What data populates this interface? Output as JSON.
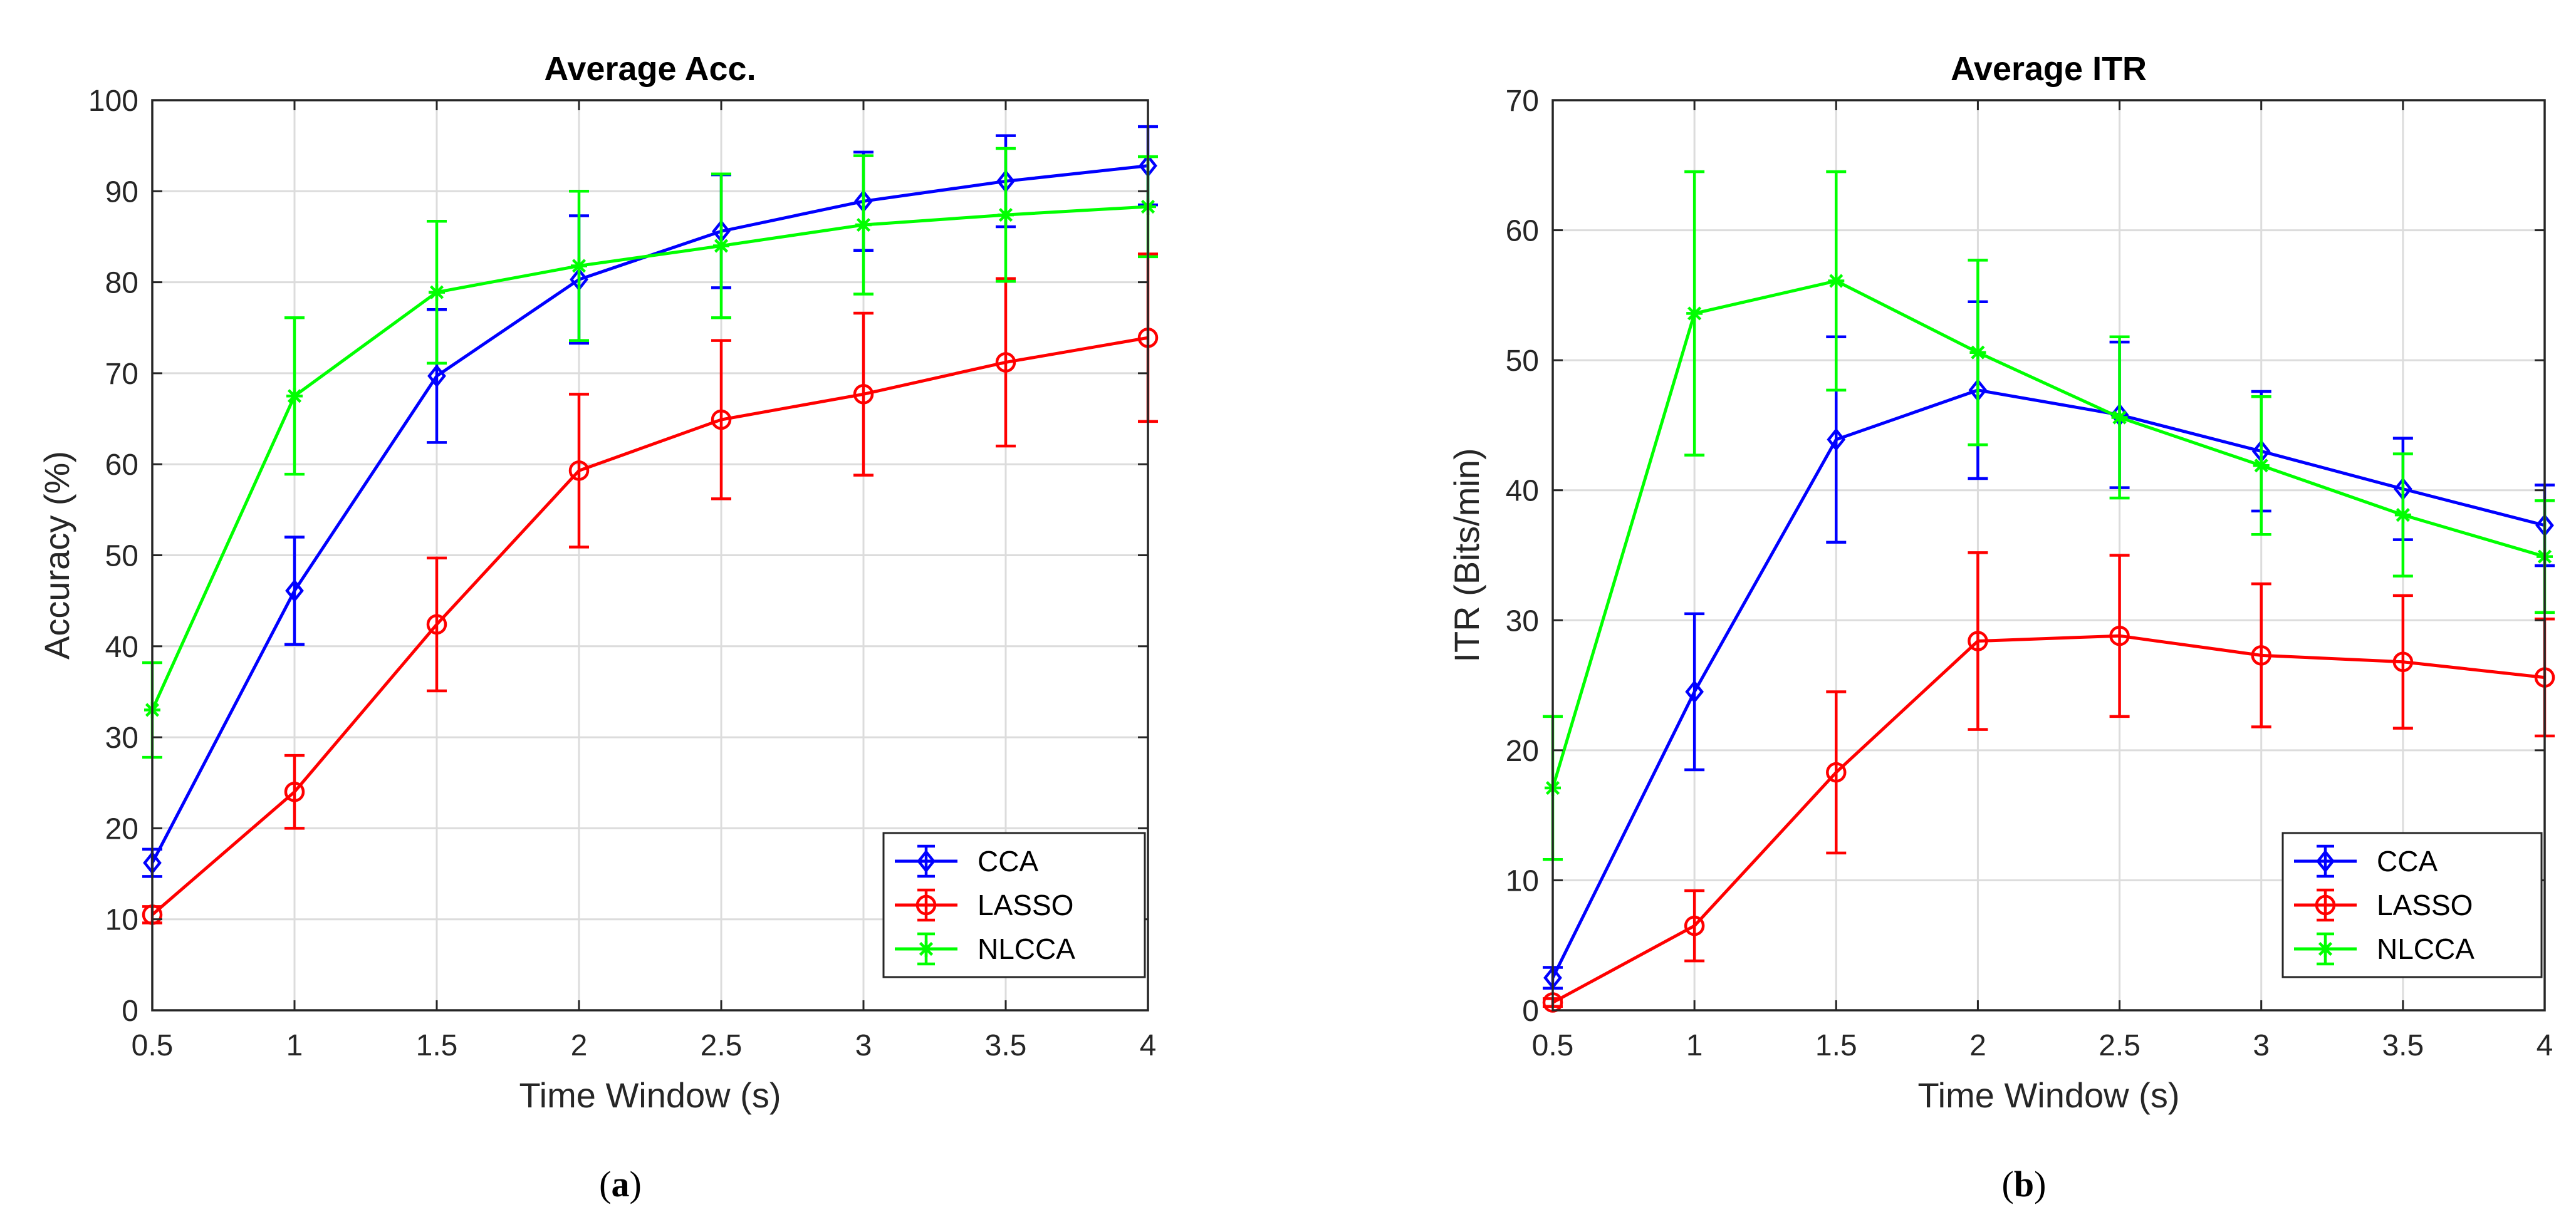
{
  "chart_data": [
    {
      "type": "line",
      "title": "Average Acc.",
      "xlabel": "Time Window (s)",
      "ylabel": "Accuracy (%)",
      "caption": "(a)",
      "caption_open": "(",
      "caption_letter": "a",
      "caption_close": ")",
      "xlim": [
        0.5,
        4
      ],
      "ylim": [
        0,
        100
      ],
      "xticks": [
        0.5,
        1,
        1.5,
        2,
        2.5,
        3,
        3.5,
        4
      ],
      "xtick_labels": [
        "0.5",
        "1",
        "1.5",
        "2",
        "2.5",
        "3",
        "3.5",
        "4"
      ],
      "yticks": [
        0,
        10,
        20,
        30,
        40,
        50,
        60,
        70,
        80,
        90,
        100
      ],
      "ytick_labels": [
        "0",
        "10",
        "20",
        "30",
        "40",
        "50",
        "60",
        "70",
        "80",
        "90",
        "100"
      ],
      "grid": true,
      "legend_position": "bottom-right",
      "x": [
        0.5,
        1,
        1.5,
        2,
        2.5,
        3,
        3.5,
        4
      ],
      "series": [
        {
          "name": "CCA",
          "color": "#0000ff",
          "marker": "diamond",
          "values": [
            16.2,
            46.1,
            69.7,
            80.3,
            85.6,
            88.9,
            91.1,
            92.8
          ],
          "errors": [
            1.5,
            5.9,
            7.3,
            7.0,
            6.2,
            5.4,
            5.0,
            4.3
          ]
        },
        {
          "name": "LASSO",
          "color": "#ff0000",
          "marker": "circle",
          "values": [
            10.5,
            24.0,
            42.4,
            59.3,
            64.9,
            67.7,
            71.2,
            73.9
          ],
          "errors": [
            0.9,
            4.0,
            7.3,
            8.4,
            8.7,
            8.9,
            9.2,
            9.2
          ]
        },
        {
          "name": "NLCCA",
          "color": "#00ff00",
          "marker": "asterisk",
          "values": [
            33.0,
            67.5,
            78.9,
            81.8,
            84.0,
            86.3,
            87.4,
            88.3
          ],
          "errors": [
            5.2,
            8.6,
            7.8,
            8.2,
            7.9,
            7.6,
            7.3,
            5.5
          ]
        }
      ]
    },
    {
      "type": "line",
      "title": "Average ITR",
      "xlabel": "Time Window (s)",
      "ylabel": "ITR (Bits/min)",
      "caption": "(b)",
      "caption_open": "(",
      "caption_letter": "b",
      "caption_close": ")",
      "xlim": [
        0.5,
        4
      ],
      "ylim": [
        0,
        70
      ],
      "xticks": [
        0.5,
        1,
        1.5,
        2,
        2.5,
        3,
        3.5,
        4
      ],
      "xtick_labels": [
        "0.5",
        "1",
        "1.5",
        "2",
        "2.5",
        "3",
        "3.5",
        "4"
      ],
      "yticks": [
        0,
        10,
        20,
        30,
        40,
        50,
        60,
        70
      ],
      "ytick_labels": [
        "0",
        "10",
        "20",
        "30",
        "40",
        "50",
        "60",
        "70"
      ],
      "grid": true,
      "legend_position": "bottom-right",
      "x": [
        0.5,
        1,
        1.5,
        2,
        2.5,
        3,
        3.5,
        4
      ],
      "series": [
        {
          "name": "CCA",
          "color": "#0000ff",
          "marker": "diamond",
          "values": [
            2.5,
            24.5,
            43.9,
            47.7,
            45.8,
            43.0,
            40.1,
            37.3
          ],
          "errors": [
            0.8,
            6.0,
            7.9,
            6.8,
            5.6,
            4.6,
            3.9,
            3.1
          ]
        },
        {
          "name": "LASSO",
          "color": "#ff0000",
          "marker": "circle",
          "values": [
            0.6,
            6.5,
            18.3,
            28.4,
            28.8,
            27.3,
            26.8,
            25.6
          ],
          "errors": [
            0.3,
            2.7,
            6.2,
            6.8,
            6.2,
            5.5,
            5.1,
            4.5
          ]
        },
        {
          "name": "NLCCA",
          "color": "#00ff00",
          "marker": "asterisk",
          "values": [
            17.1,
            53.6,
            56.1,
            50.6,
            45.6,
            41.9,
            38.1,
            34.9
          ],
          "errors": [
            5.5,
            10.9,
            8.4,
            7.1,
            6.2,
            5.3,
            4.7,
            4.3
          ]
        }
      ]
    }
  ]
}
